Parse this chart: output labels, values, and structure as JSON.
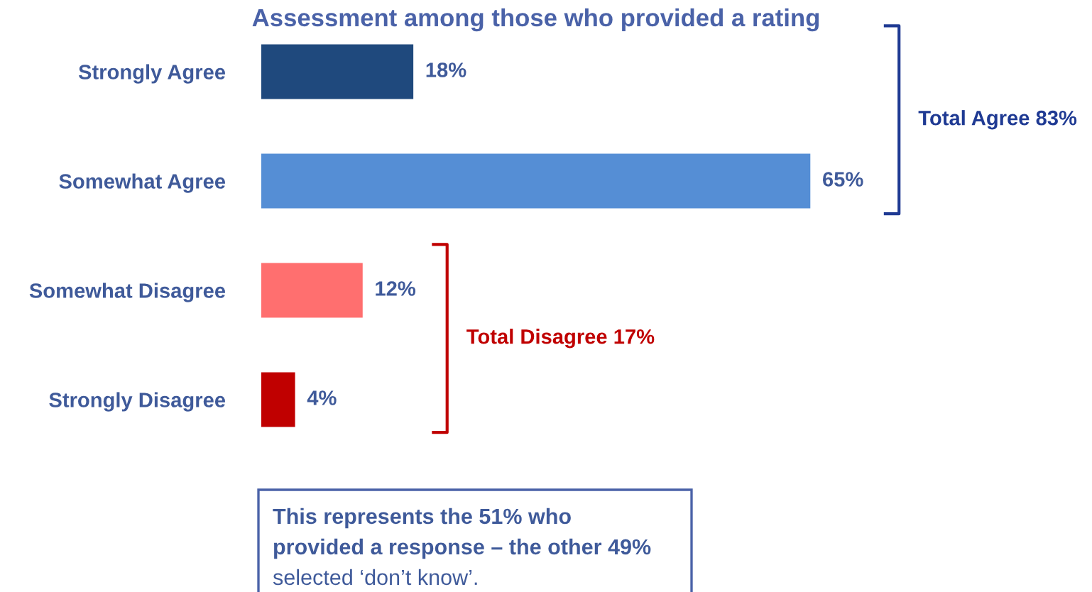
{
  "chart_data": {
    "type": "bar",
    "orientation": "horizontal",
    "title": "Assessment among those who provided a rating",
    "categories": [
      "Strongly Agree",
      "Somewhat Agree",
      "Somewhat Disagree",
      "Strongly Disagree"
    ],
    "values": [
      18,
      65,
      12,
      4
    ],
    "colors": [
      "#1f497d",
      "#558ed5",
      "#ff6f6f",
      "#c00000"
    ],
    "value_labels": [
      "18%",
      "65%",
      "12%",
      "4%"
    ],
    "annotations": [
      "Total Agree 83%",
      "Total Disagree 17%",
      "This represents the 51% who",
      "provided a response – the other 49%",
      "selected ‘don’t know’."
    ],
    "grid": false,
    "legend": false
  }
}
